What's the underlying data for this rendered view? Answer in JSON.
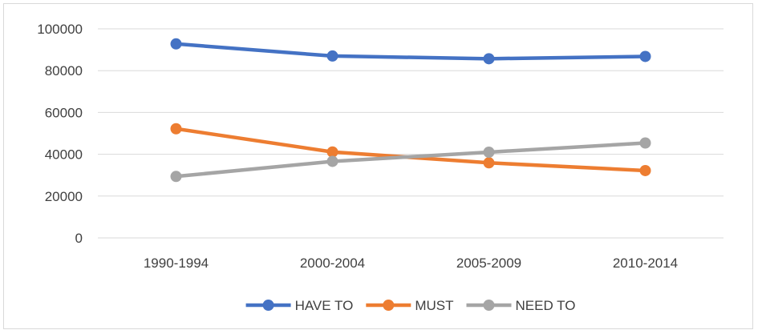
{
  "chart_data": {
    "type": "line",
    "title": "",
    "xlabel": "",
    "ylabel": "",
    "categories": [
      "1990-1994",
      "2000-2004",
      "2005-2009",
      "2010-2014"
    ],
    "ylim": [
      0,
      100000
    ],
    "yticks": [
      0,
      20000,
      40000,
      60000,
      80000,
      100000
    ],
    "grid": "horizontal",
    "legend_position": "bottom",
    "series": [
      {
        "name": "HAVE TO",
        "color": "#4472C4",
        "values": [
          92800,
          87000,
          85700,
          86800
        ]
      },
      {
        "name": "MUST",
        "color": "#ED7D31",
        "values": [
          52200,
          41100,
          35900,
          32200
        ]
      },
      {
        "name": "NEED TO",
        "color": "#A5A5A5",
        "values": [
          29400,
          36600,
          41000,
          45400
        ]
      }
    ]
  }
}
